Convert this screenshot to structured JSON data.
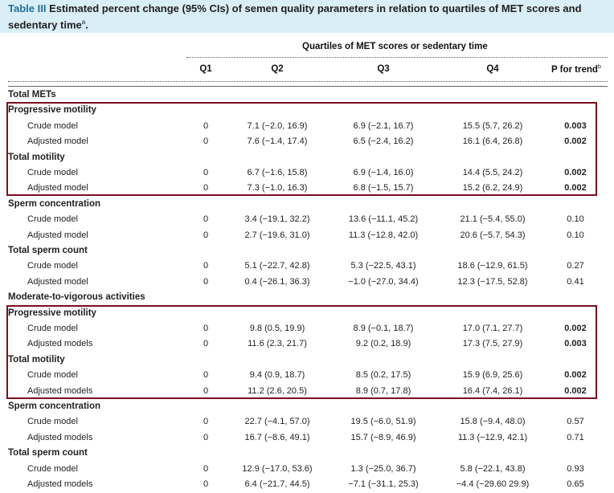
{
  "table_label": "Table III",
  "caption": "Estimated percent change (95% CIs) of semen quality parameters in relation to quartiles of MET scores and sedentary time",
  "caption_sup": "a",
  "spanner": "Quartiles of MET scores or sedentary time",
  "columns": [
    "Q1",
    "Q2",
    "Q3",
    "Q4",
    "P for trend"
  ],
  "p_sup": "b",
  "highlight_color": "#7a0e1e",
  "rows": [
    {
      "label": "Total METs",
      "type": "section"
    },
    {
      "label": "Progressive motility",
      "type": "sub"
    },
    {
      "label": "Crude model",
      "type": "data",
      "q1": "0",
      "q2": "7.1 (−2.0, 16.9)",
      "q3": "6.9 (−2.1, 16.7)",
      "q4": "15.5 (5.7, 26.2)",
      "p": "0.003",
      "p_bold": true
    },
    {
      "label": "Adjusted model",
      "type": "data",
      "q1": "0",
      "q2": "7.6 (−1.4, 17.4)",
      "q3": "6.5 (−2.4, 16.2)",
      "q4": "16.1 (6.4, 26.8)",
      "p": "0.002",
      "p_bold": true
    },
    {
      "label": "Total motility",
      "type": "sub"
    },
    {
      "label": "Crude model",
      "type": "data",
      "q1": "0",
      "q2": "6.7 (−1.6, 15.8)",
      "q3": "6.9 (−1.4, 16.0)",
      "q4": "14.4 (5.5, 24.2)",
      "p": "0.002",
      "p_bold": true
    },
    {
      "label": "Adjusted model",
      "type": "data",
      "q1": "0",
      "q2": "7.3 (−1.0, 16.3)",
      "q3": "6.8 (−1.5, 15.7)",
      "q4": "15.2 (6.2, 24.9)",
      "p": "0.002",
      "p_bold": true
    },
    {
      "label": "Sperm concentration",
      "type": "sub"
    },
    {
      "label": "Crude model",
      "type": "data",
      "q1": "0",
      "q2": "3.4 (−19.1, 32.2)",
      "q3": "13.6 (−11.1, 45.2)",
      "q4": "21.1 (−5.4, 55.0)",
      "p": "0.10",
      "p_bold": false
    },
    {
      "label": "Adjusted model",
      "type": "data",
      "q1": "0",
      "q2": "2.7 (−19.6, 31.0)",
      "q3": "11.3 (−12.8, 42.0)",
      "q4": "20.6 (−5.7, 54.3)",
      "p": "0.10",
      "p_bold": false
    },
    {
      "label": "Total sperm count",
      "type": "sub"
    },
    {
      "label": "Crude model",
      "type": "data",
      "q1": "0",
      "q2": "5.1 (−22.7, 42.8)",
      "q3": "5.3 (−22.5, 43.1)",
      "q4": "18.6 (−12.9, 61.5)",
      "p": "0.27",
      "p_bold": false
    },
    {
      "label": "Adjusted model",
      "type": "data",
      "q1": "0",
      "q2": "0.4 (−26.1, 36.3)",
      "q3": "−1.0 (−27.0, 34.4)",
      "q4": "12.3 (−17.5, 52.8)",
      "p": "0.41",
      "p_bold": false
    },
    {
      "label": "Moderate-to-vigorous activities",
      "type": "section"
    },
    {
      "label": "Progressive motility",
      "type": "sub"
    },
    {
      "label": "Crude model",
      "type": "data",
      "q1": "0",
      "q2": "9.8 (0.5, 19.9)",
      "q3": "8.9 (−0.1, 18.7)",
      "q4": "17.0 (7.1, 27.7)",
      "p": "0.002",
      "p_bold": true
    },
    {
      "label": "Adjusted models",
      "type": "data",
      "q1": "0",
      "q2": "11.6 (2.3, 21.7)",
      "q3": "9.2 (0.2, 18.9)",
      "q4": "17.3 (7.5, 27.9)",
      "p": "0.003",
      "p_bold": true
    },
    {
      "label": "Total motility",
      "type": "sub"
    },
    {
      "label": "Crude model",
      "type": "data",
      "q1": "0",
      "q2": "9.4 (0.9, 18.7)",
      "q3": "8.5 (0.2, 17.5)",
      "q4": "15.9 (6.9, 25.6)",
      "p": "0.002",
      "p_bold": true
    },
    {
      "label": "Adjusted models",
      "type": "data",
      "q1": "0",
      "q2": "11.2 (2.6, 20.5)",
      "q3": "8.9 (0.7, 17.8)",
      "q4": "16.4 (7.4, 26.1)",
      "p": "0.002",
      "p_bold": true
    },
    {
      "label": "Sperm concentration",
      "type": "sub"
    },
    {
      "label": "Crude model",
      "type": "data",
      "q1": "0",
      "q2": "22.7 (−4.1, 57.0)",
      "q3": "19.5 (−6.0, 51.9)",
      "q4": "15.8 (−9.4, 48.0)",
      "p": "0.57",
      "p_bold": false
    },
    {
      "label": "Adjusted models",
      "type": "data",
      "q1": "0",
      "q2": "16.7 (−8.6, 49.1)",
      "q3": "15.7 (−8.9, 46.9)",
      "q4": "11.3 (−12.9, 42.1)",
      "p": "0.71",
      "p_bold": false
    },
    {
      "label": "Total sperm count",
      "type": "sub"
    },
    {
      "label": "Crude model",
      "type": "data",
      "q1": "0",
      "q2": "12.9 (−17.0, 53.6)",
      "q3": "1.3 (−25.0, 36.7)",
      "q4": "5.8 (−22.1, 43.8)",
      "p": "0.93",
      "p_bold": false
    },
    {
      "label": "Adjusted models",
      "type": "data",
      "q1": "0",
      "q2": "6.4 (−21.7, 44.5)",
      "q3": "−7.1 (−31.1, 25.3)",
      "q4": "−4.4 (−29.60 29.9)",
      "p": "0.65",
      "p_bold": false
    }
  ]
}
